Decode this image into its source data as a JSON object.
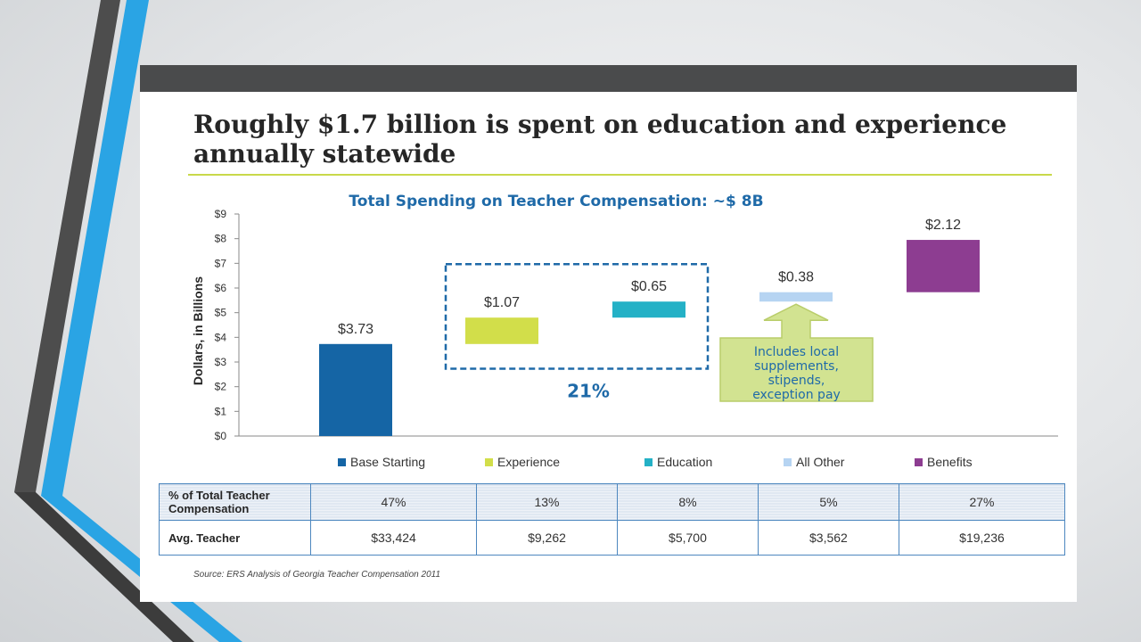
{
  "slide": {
    "title": "Roughly $1.7 billion is spent on education and experience annually statewide",
    "source": "Source: ERS Analysis of Georgia Teacher Compensation 2011"
  },
  "colors": {
    "base_starting": "#1565a5",
    "experience": "#d2de4a",
    "education": "#24b1c6",
    "all_other": "#b6d4f2",
    "benefits": "#8d3d91",
    "title_blue": "#1f6aa8",
    "callout_fill": "#d2e391"
  },
  "chart_data": {
    "type": "bar",
    "subtype": "waterfall",
    "title": "Total Spending on Teacher Compensation: ~$ 8B",
    "ylabel": "Dollars, in Billions",
    "ylim": [
      0,
      9
    ],
    "yticks": [
      "$0",
      "$1",
      "$2",
      "$3",
      "$4",
      "$5",
      "$6",
      "$7",
      "$8",
      "$9"
    ],
    "categories": [
      "Base Starting",
      "Experience",
      "Education",
      "All Other",
      "Benefits"
    ],
    "values": [
      3.73,
      1.07,
      0.65,
      0.38,
      2.12
    ],
    "value_labels": [
      "$3.73",
      "$1.07",
      "$0.65",
      "$0.38",
      "$2.12"
    ],
    "series_colors": [
      "#1565a5",
      "#d2de4a",
      "#24b1c6",
      "#b6d4f2",
      "#8d3d91"
    ],
    "grid": false,
    "legend_position": "bottom",
    "annotations": {
      "group_percent": "21%",
      "callout": [
        "Includes local",
        "supplements,",
        "stipends,",
        "exception pay"
      ]
    }
  },
  "table": {
    "rows": [
      {
        "label": "% of Total Teacher Compensation",
        "cells": [
          "47%",
          "13%",
          "8%",
          "5%",
          "27%"
        ]
      },
      {
        "label": "Avg. Teacher",
        "cells": [
          "$33,424",
          "$9,262",
          "$5,700",
          "$3,562",
          "$19,236"
        ]
      }
    ]
  }
}
